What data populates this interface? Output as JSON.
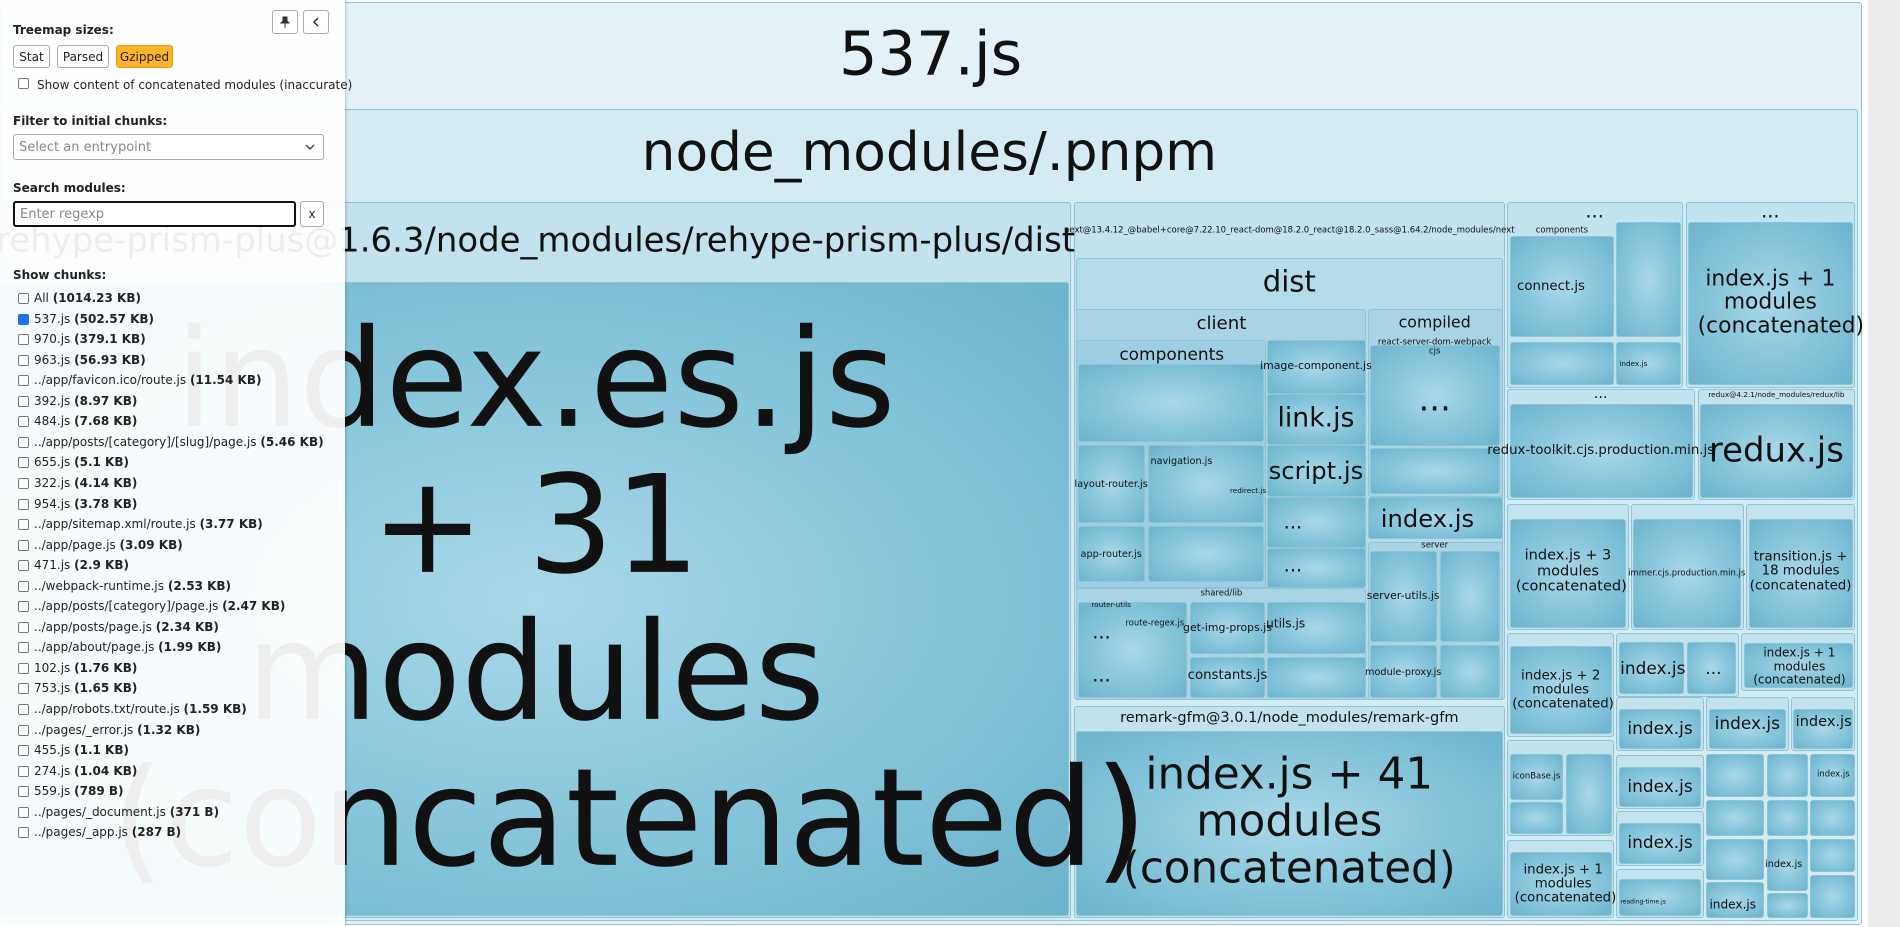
{
  "sidebar": {
    "treemap_sizes_label": "Treemap sizes:",
    "size_buttons": [
      {
        "label": "Stat",
        "active": false
      },
      {
        "label": "Parsed",
        "active": false
      },
      {
        "label": "Gzipped",
        "active": true
      }
    ],
    "concatenated_checkbox": "Show content of concatenated modules (inaccurate)",
    "filter_label": "Filter to initial chunks:",
    "entrypoint_placeholder": "Select an entrypoint",
    "search_label": "Search modules:",
    "search_placeholder": "Enter regexp",
    "clear_button": "x",
    "show_chunks_label": "Show chunks:",
    "chunks": [
      {
        "name": "All",
        "size": "(1014.23 KB)",
        "checked": false
      },
      {
        "name": "537.js",
        "size": "(502.57 KB)",
        "checked": true
      },
      {
        "name": "970.js",
        "size": "(379.1 KB)",
        "checked": false
      },
      {
        "name": "963.js",
        "size": "(56.93 KB)",
        "checked": false
      },
      {
        "name": "../app/favicon.ico/route.js",
        "size": "(11.54 KB)",
        "checked": false
      },
      {
        "name": "392.js",
        "size": "(8.97 KB)",
        "checked": false
      },
      {
        "name": "484.js",
        "size": "(7.68 KB)",
        "checked": false
      },
      {
        "name": "../app/posts/[category]/[slug]/page.js",
        "size": "(5.46 KB)",
        "checked": false
      },
      {
        "name": "655.js",
        "size": "(5.1 KB)",
        "checked": false
      },
      {
        "name": "322.js",
        "size": "(4.14 KB)",
        "checked": false
      },
      {
        "name": "954.js",
        "size": "(3.78 KB)",
        "checked": false
      },
      {
        "name": "../app/sitemap.xml/route.js",
        "size": "(3.77 KB)",
        "checked": false
      },
      {
        "name": "../app/page.js",
        "size": "(3.09 KB)",
        "checked": false
      },
      {
        "name": "471.js",
        "size": "(2.9 KB)",
        "checked": false
      },
      {
        "name": "../webpack-runtime.js",
        "size": "(2.53 KB)",
        "checked": false
      },
      {
        "name": "../app/posts/[category]/page.js",
        "size": "(2.47 KB)",
        "checked": false
      },
      {
        "name": "../app/posts/page.js",
        "size": "(2.34 KB)",
        "checked": false
      },
      {
        "name": "../app/about/page.js",
        "size": "(1.99 KB)",
        "checked": false
      },
      {
        "name": "102.js",
        "size": "(1.76 KB)",
        "checked": false
      },
      {
        "name": "753.js",
        "size": "(1.65 KB)",
        "checked": false
      },
      {
        "name": "../app/robots.txt/route.js",
        "size": "(1.59 KB)",
        "checked": false
      },
      {
        "name": "../pages/_error.js",
        "size": "(1.32 KB)",
        "checked": false
      },
      {
        "name": "455.js",
        "size": "(1.1 KB)",
        "checked": false
      },
      {
        "name": "274.js",
        "size": "(1.04 KB)",
        "checked": false
      },
      {
        "name": "559.js",
        "size": "(789 B)",
        "checked": false
      },
      {
        "name": "../pages/_document.js",
        "size": "(371 B)",
        "checked": false
      },
      {
        "name": "../pages/_app.js",
        "size": "(287 B)",
        "checked": false
      }
    ]
  },
  "treemap": {
    "labels": [
      "537.js",
      "node_modules/.pnpm",
      "rehype-prism-plus@1.6.3/node_modules/rehype-prism-plus/dist",
      "index.es.js + 31 modules (concatenated)",
      "next@13.4.12_@babel+core@7.22.10_react-dom@18.2.0_react@18.2.0_sass@1.64.2/node_modules/next",
      "dist",
      "client",
      "components",
      "image-component.js",
      "link.js",
      "script.js",
      "compiled",
      "react-server-dom-webpack",
      "cjs",
      "...",
      "index.js",
      "server",
      "server-utils.js",
      "module-proxy.js",
      "shared/lib",
      "router-utils",
      "route-regex.js",
      "get-img-props.js",
      "constants.js",
      "utils.js",
      "layout-router.js",
      "navigation.js",
      "redirect.js",
      "app-router.js",
      "...",
      "...",
      "...",
      "...",
      "remark-gfm@3.0.1/node_modules/remark-gfm",
      "index.js + 41 modules (concatenated)",
      "...",
      "components",
      "connect.js",
      "index.js",
      "...",
      "index.js + 1 modules (concatenated)",
      "...",
      "redux-toolkit.cjs.production.min.js",
      "redux@4.2.1/node_modules/redux/lib",
      "redux.js",
      "index.js + 3 modules (concatenated)",
      "immer.cjs.production.min.js",
      "transition.js + 18 modules (concatenated)",
      "index.js + 2 modules (concatenated)",
      "index.js",
      "...",
      "index.js + 1 modules (concatenated)",
      "iconBase.js",
      "index.js + 1 modules (concatenated)",
      "index.js",
      "index.js",
      "index.js",
      "index.js",
      "index.js",
      "reading-time.js",
      "index.js",
      "index.js",
      "index.js"
    ]
  }
}
